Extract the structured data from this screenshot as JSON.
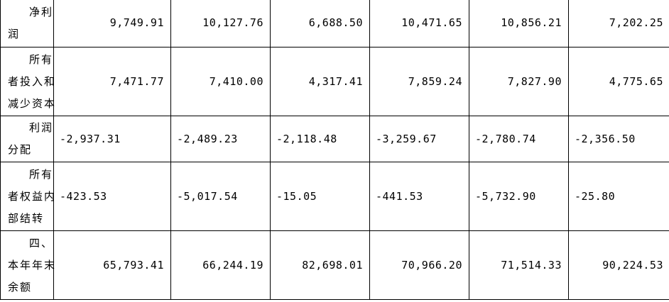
{
  "rows": [
    {
      "label": [
        "净利",
        "润"
      ],
      "values": [
        "9,749.91",
        "10,127.76",
        "6,688.50",
        "10,471.65",
        "10,856.21",
        "7,202.25"
      ]
    },
    {
      "label": [
        "所有",
        "者投入和",
        "减少资本"
      ],
      "values": [
        "7,471.77",
        "7,410.00",
        "4,317.41",
        "7,859.24",
        "7,827.90",
        "4,775.65"
      ]
    },
    {
      "label": [
        "利润",
        "分配"
      ],
      "values": [
        "-2,937.31",
        "-2,489.23",
        "-2,118.48",
        "-3,259.67",
        "-2,780.74",
        "-2,356.50"
      ]
    },
    {
      "label": [
        "所有",
        "者权益内",
        "部结转"
      ],
      "values": [
        "-423.53",
        "-5,017.54",
        "-15.05",
        "-441.53",
        "-5,732.90",
        "-25.80"
      ]
    },
    {
      "label": [
        "四、",
        "本年年末",
        "余额"
      ],
      "values": [
        "65,793.41",
        "66,244.19",
        "82,698.01",
        "70,966.20",
        "71,514.33",
        "90,224.53"
      ]
    }
  ]
}
